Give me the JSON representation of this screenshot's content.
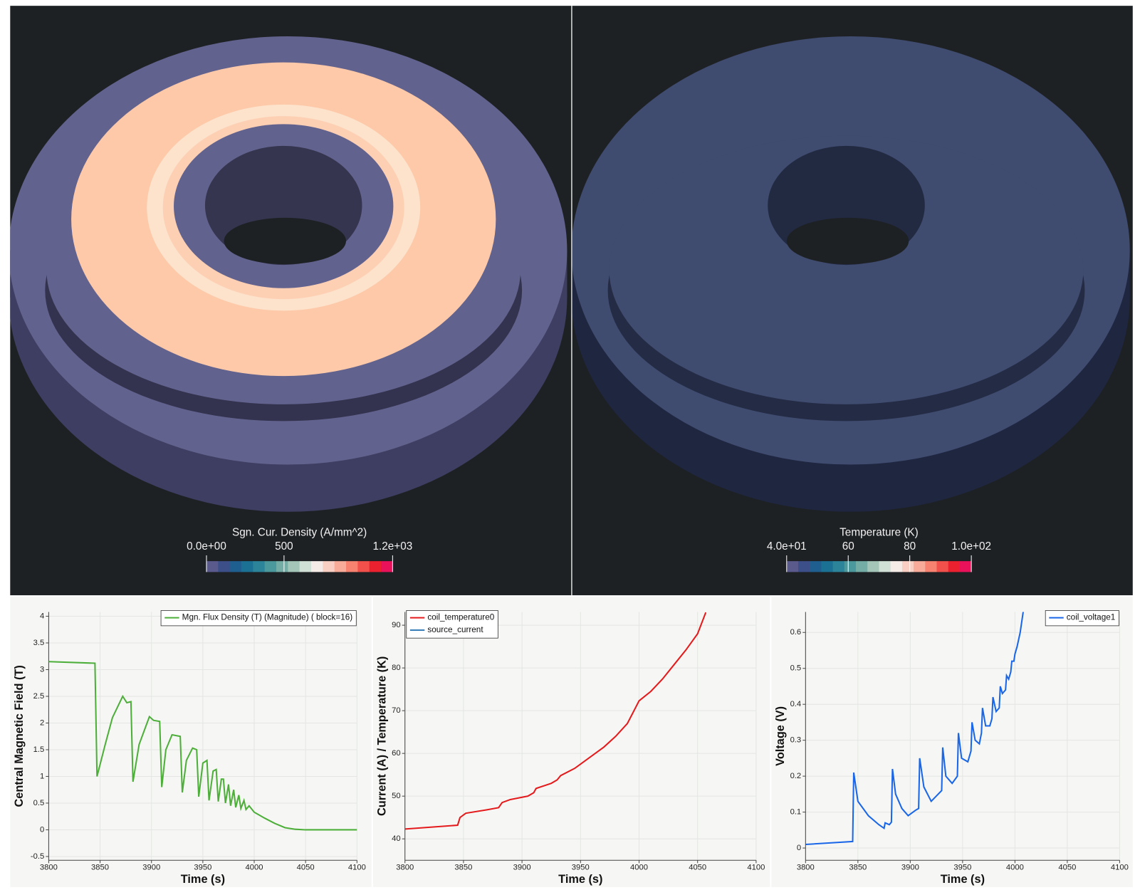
{
  "colormap": [
    "#5b5a8c",
    "#3d4f88",
    "#1f5f8f",
    "#1a7193",
    "#2b8499",
    "#4b989d",
    "#74ada6",
    "#a3c6b8",
    "#d1e0d6",
    "#f5ece8",
    "#f8cfc2",
    "#f8ab98",
    "#f7826f",
    "#f2514b",
    "#ec2130",
    "#e8115a"
  ],
  "render_views": [
    {
      "colorbar": {
        "title": "Sgn. Cur. Density (A/mm^2)",
        "range": [
          0,
          1200
        ],
        "ticks": [
          {
            "value": 0,
            "label": "0.0e+00"
          },
          500,
          {
            "value": 1200,
            "label": "1.2e+03"
          }
        ]
      }
    },
    {
      "colorbar": {
        "title": "Temperature (K)",
        "range": [
          40,
          100
        ],
        "ticks": [
          {
            "value": 40,
            "label": "4.0e+01"
          },
          60,
          80,
          {
            "value": 100,
            "label": "1.0e+02"
          }
        ]
      }
    }
  ],
  "chart_data": [
    {
      "type": "line",
      "x_label": "Time (s)",
      "y_label": "Central Magnetic Field (T)",
      "xlim": [
        3800,
        4100
      ],
      "xticks": [
        3800,
        3850,
        3900,
        3950,
        4000,
        4050,
        4100
      ],
      "ylim": [
        -0.57,
        4.08
      ],
      "yticks": [
        -0.5,
        0,
        0.5,
        1,
        1.5,
        2,
        2.5,
        3,
        3.5,
        4
      ],
      "grid": true,
      "legend": "upper right",
      "series": [
        {
          "name": "Mgn. Flux Density (T) (Magnitude) ( block=16)",
          "color": "#4daf3a",
          "x": [
            3800,
            3845,
            3847,
            3855,
            3862,
            3872,
            3876,
            3880,
            3882,
            3888,
            3898,
            3902,
            3908,
            3910,
            3914,
            3920,
            3928,
            3930,
            3934,
            3940,
            3944,
            3946,
            3950,
            3954,
            3956,
            3960,
            3963,
            3965,
            3968,
            3970,
            3972,
            3975,
            3977,
            3980,
            3982,
            3985,
            3987,
            3990,
            3992,
            3995,
            4000,
            4010,
            4020,
            4030,
            4040,
            4050,
            4100
          ],
          "values": [
            3.15,
            3.12,
            1.0,
            1.6,
            2.1,
            2.5,
            2.38,
            2.4,
            0.9,
            1.6,
            2.12,
            2.05,
            2.03,
            0.8,
            1.5,
            1.78,
            1.75,
            0.7,
            1.3,
            1.53,
            1.5,
            0.62,
            1.25,
            1.3,
            0.55,
            1.1,
            1.13,
            0.53,
            0.95,
            0.95,
            0.5,
            0.85,
            0.45,
            0.75,
            0.42,
            0.65,
            0.4,
            0.55,
            0.38,
            0.45,
            0.33,
            0.22,
            0.12,
            0.04,
            0.01,
            0.0,
            0.0
          ]
        }
      ]
    },
    {
      "type": "line",
      "x_label": "Time (s)",
      "y_label": "Current (A) / Temperature (K)",
      "xlim": [
        3800,
        4100
      ],
      "xticks": [
        3800,
        3850,
        3900,
        3950,
        4000,
        4050,
        4100
      ],
      "ylim": [
        35.0,
        93.1
      ],
      "yticks": [
        40,
        50,
        60,
        70,
        80,
        90
      ],
      "grid": true,
      "legend": "upper left",
      "series": [
        {
          "name": "coil_temperature0",
          "color": "#e41a1c",
          "x": [
            3800,
            3845,
            3847,
            3852,
            3870,
            3880,
            3883,
            3890,
            3905,
            3910,
            3912,
            3925,
            3930,
            3933,
            3945,
            3950,
            3960,
            3970,
            3980,
            3990,
            4000,
            4010,
            4020,
            4030,
            4040,
            4050,
            4057
          ],
          "values": [
            42.3,
            43.2,
            45,
            46,
            46.8,
            47.3,
            48.5,
            49.2,
            50,
            50.8,
            51.8,
            53,
            53.8,
            54.8,
            56.5,
            57.5,
            59.5,
            61.5,
            64,
            67,
            72.3,
            74.5,
            77.4,
            80.8,
            84.2,
            88,
            93
          ]
        },
        {
          "name": "source_current",
          "color": "#377eb8"
        }
      ]
    },
    {
      "type": "line",
      "x_label": "Time (s)",
      "y_label": "Voltage (V)",
      "xlim": [
        3800,
        4100
      ],
      "xticks": [
        3800,
        3850,
        3900,
        3950,
        4000,
        4050,
        4100
      ],
      "ylim": [
        -0.034,
        0.657
      ],
      "yticks": [
        0,
        0.1,
        0.2,
        0.3,
        0.4,
        0.5,
        0.6
      ],
      "grid": true,
      "legend": "upper right",
      "series": [
        {
          "name": "coil_voltage1",
          "color": "#1a66e8",
          "x": [
            3800,
            3845,
            3846,
            3850,
            3860,
            3870,
            3875,
            3876,
            3880,
            3882,
            3883,
            3886,
            3892,
            3898,
            3905,
            3908,
            3909,
            3913,
            3920,
            3930,
            3931,
            3934,
            3940,
            3945,
            3946,
            3949,
            3955,
            3958,
            3959,
            3962,
            3966,
            3968,
            3969,
            3972,
            3976,
            3978,
            3979,
            3982,
            3985,
            3986,
            3988,
            3991,
            3992,
            3994,
            3996,
            3997,
            3999,
            4000,
            4002,
            4005,
            4008
          ],
          "values": [
            0.01,
            0.018,
            0.21,
            0.13,
            0.09,
            0.065,
            0.055,
            0.07,
            0.065,
            0.072,
            0.22,
            0.15,
            0.11,
            0.09,
            0.105,
            0.11,
            0.25,
            0.17,
            0.13,
            0.16,
            0.28,
            0.2,
            0.18,
            0.2,
            0.32,
            0.25,
            0.24,
            0.27,
            0.35,
            0.3,
            0.29,
            0.32,
            0.39,
            0.34,
            0.34,
            0.36,
            0.42,
            0.38,
            0.39,
            0.45,
            0.43,
            0.44,
            0.48,
            0.47,
            0.49,
            0.52,
            0.52,
            0.54,
            0.56,
            0.6,
            0.66
          ]
        }
      ]
    }
  ]
}
